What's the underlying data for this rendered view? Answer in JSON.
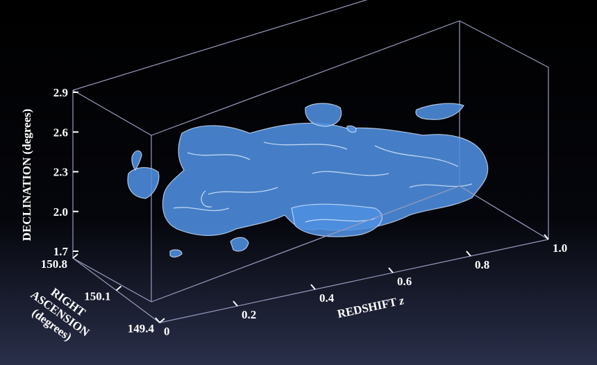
{
  "axes": {
    "declination": {
      "label": "DECLINATION (degrees)",
      "ticks": [
        "2.9",
        "2.6",
        "2.3",
        "2.0",
        "1.7"
      ]
    },
    "right_ascension": {
      "label_lines": [
        "RIGHT",
        "ASCENSION",
        "(degrees)"
      ],
      "ticks": [
        "150.8",
        "150.1",
        "149.4"
      ]
    },
    "redshift": {
      "label": "REDSHIFT",
      "symbol": "z",
      "ticks": [
        "0",
        "0.2",
        "0.4",
        "0.6",
        "0.8",
        "1.0"
      ]
    }
  }
}
